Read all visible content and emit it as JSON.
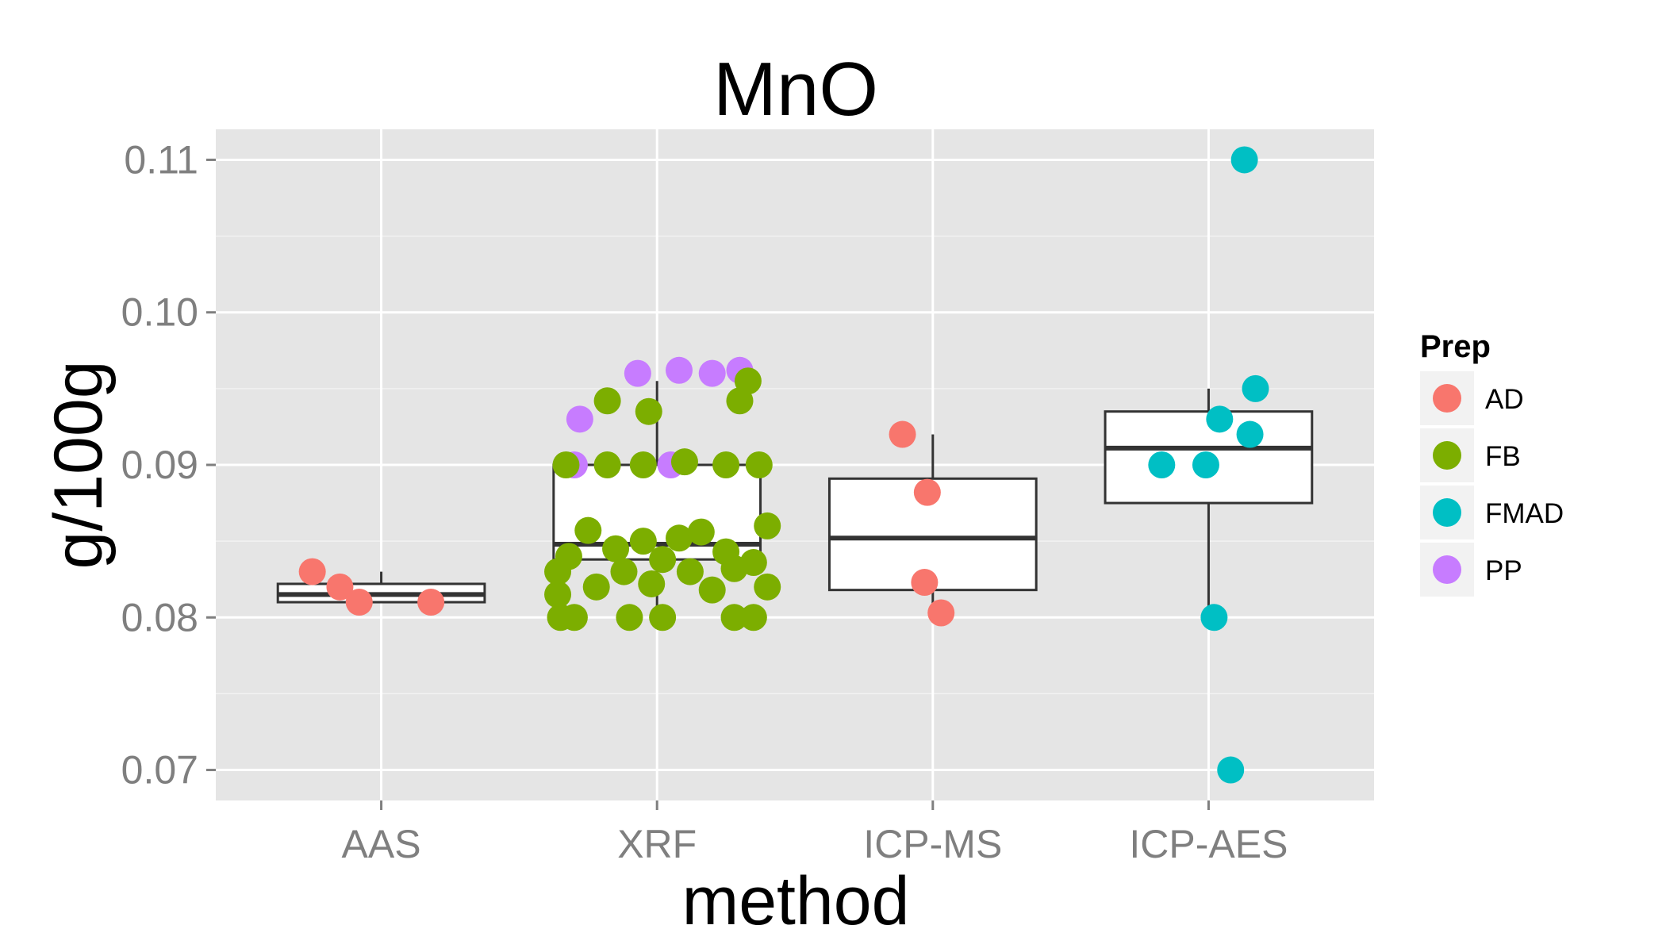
{
  "chart_data": {
    "type": "boxplot",
    "title": "MnO",
    "xlabel": "method",
    "ylabel": "g/100g",
    "categories": [
      "AAS",
      "XRF",
      "ICP-MS",
      "ICP-AES"
    ],
    "ylim": [
      0.068,
      0.112
    ],
    "yticks": [
      "0.07",
      "0.08",
      "0.09",
      "0.10",
      "0.11"
    ],
    "grid": true,
    "legend": {
      "title": "Prep",
      "placement": "right",
      "entries": [
        {
          "name": "AD",
          "color": "#F8766D"
        },
        {
          "name": "FB",
          "color": "#7CAE00"
        },
        {
          "name": "FMAD",
          "color": "#00BFC4"
        },
        {
          "name": "PP",
          "color": "#C77CFF"
        }
      ]
    },
    "boxes": [
      {
        "category": "AAS",
        "lower_whisker": 0.081,
        "q1": 0.081,
        "median": 0.0815,
        "q3": 0.0822,
        "upper_whisker": 0.083
      },
      {
        "category": "XRF",
        "lower_whisker": 0.08,
        "q1": 0.0838,
        "median": 0.0848,
        "q3": 0.09,
        "upper_whisker": 0.0955
      },
      {
        "category": "ICP-MS",
        "lower_whisker": 0.0803,
        "q1": 0.0818,
        "median": 0.0852,
        "q3": 0.0891,
        "upper_whisker": 0.092
      },
      {
        "category": "ICP-AES",
        "lower_whisker": 0.08,
        "q1": 0.0875,
        "median": 0.0911,
        "q3": 0.0935,
        "upper_whisker": 0.095
      }
    ],
    "points": [
      {
        "category": "AAS",
        "prep": "AD",
        "y": 0.083,
        "jitter": -0.25
      },
      {
        "category": "AAS",
        "prep": "AD",
        "y": 0.082,
        "jitter": -0.15
      },
      {
        "category": "AAS",
        "prep": "AD",
        "y": 0.081,
        "jitter": -0.08
      },
      {
        "category": "AAS",
        "prep": "AD",
        "y": 0.081,
        "jitter": 0.18
      },
      {
        "category": "XRF",
        "prep": "PP",
        "y": 0.093,
        "jitter": -0.28
      },
      {
        "category": "XRF",
        "prep": "PP",
        "y": 0.096,
        "jitter": -0.07
      },
      {
        "category": "XRF",
        "prep": "PP",
        "y": 0.0962,
        "jitter": 0.08
      },
      {
        "category": "XRF",
        "prep": "PP",
        "y": 0.096,
        "jitter": 0.2
      },
      {
        "category": "XRF",
        "prep": "PP",
        "y": 0.0962,
        "jitter": 0.3
      },
      {
        "category": "XRF",
        "prep": "PP",
        "y": 0.09,
        "jitter": -0.3
      },
      {
        "category": "XRF",
        "prep": "PP",
        "y": 0.09,
        "jitter": 0.05
      },
      {
        "category": "XRF",
        "prep": "FB",
        "y": 0.0955,
        "jitter": 0.33
      },
      {
        "category": "XRF",
        "prep": "FB",
        "y": 0.0942,
        "jitter": -0.18
      },
      {
        "category": "XRF",
        "prep": "FB",
        "y": 0.0935,
        "jitter": -0.03
      },
      {
        "category": "XRF",
        "prep": "FB",
        "y": 0.0942,
        "jitter": 0.3
      },
      {
        "category": "XRF",
        "prep": "FB",
        "y": 0.09,
        "jitter": -0.33
      },
      {
        "category": "XRF",
        "prep": "FB",
        "y": 0.09,
        "jitter": -0.18
      },
      {
        "category": "XRF",
        "prep": "FB",
        "y": 0.09,
        "jitter": -0.05
      },
      {
        "category": "XRF",
        "prep": "FB",
        "y": 0.0902,
        "jitter": 0.1
      },
      {
        "category": "XRF",
        "prep": "FB",
        "y": 0.09,
        "jitter": 0.25
      },
      {
        "category": "XRF",
        "prep": "FB",
        "y": 0.09,
        "jitter": 0.37
      },
      {
        "category": "XRF",
        "prep": "FB",
        "y": 0.0857,
        "jitter": -0.25
      },
      {
        "category": "XRF",
        "prep": "FB",
        "y": 0.085,
        "jitter": -0.05
      },
      {
        "category": "XRF",
        "prep": "FB",
        "y": 0.0852,
        "jitter": 0.08
      },
      {
        "category": "XRF",
        "prep": "FB",
        "y": 0.0856,
        "jitter": 0.16
      },
      {
        "category": "XRF",
        "prep": "FB",
        "y": 0.086,
        "jitter": 0.4
      },
      {
        "category": "XRF",
        "prep": "FB",
        "y": 0.0845,
        "jitter": -0.15
      },
      {
        "category": "XRF",
        "prep": "FB",
        "y": 0.0843,
        "jitter": 0.25
      },
      {
        "category": "XRF",
        "prep": "FB",
        "y": 0.084,
        "jitter": -0.32
      },
      {
        "category": "XRF",
        "prep": "FB",
        "y": 0.0838,
        "jitter": 0.02
      },
      {
        "category": "XRF",
        "prep": "FB",
        "y": 0.0836,
        "jitter": 0.35
      },
      {
        "category": "XRF",
        "prep": "FB",
        "y": 0.083,
        "jitter": -0.36
      },
      {
        "category": "XRF",
        "prep": "FB",
        "y": 0.083,
        "jitter": -0.12
      },
      {
        "category": "XRF",
        "prep": "FB",
        "y": 0.083,
        "jitter": 0.12
      },
      {
        "category": "XRF",
        "prep": "FB",
        "y": 0.0832,
        "jitter": 0.28
      },
      {
        "category": "XRF",
        "prep": "FB",
        "y": 0.082,
        "jitter": -0.22
      },
      {
        "category": "XRF",
        "prep": "FB",
        "y": 0.0822,
        "jitter": -0.02
      },
      {
        "category": "XRF",
        "prep": "FB",
        "y": 0.0818,
        "jitter": 0.2
      },
      {
        "category": "XRF",
        "prep": "FB",
        "y": 0.082,
        "jitter": 0.4
      },
      {
        "category": "XRF",
        "prep": "FB",
        "y": 0.0815,
        "jitter": -0.36
      },
      {
        "category": "XRF",
        "prep": "FB",
        "y": 0.08,
        "jitter": -0.35
      },
      {
        "category": "XRF",
        "prep": "FB",
        "y": 0.08,
        "jitter": -0.3
      },
      {
        "category": "XRF",
        "prep": "FB",
        "y": 0.08,
        "jitter": -0.1
      },
      {
        "category": "XRF",
        "prep": "FB",
        "y": 0.08,
        "jitter": 0.02
      },
      {
        "category": "XRF",
        "prep": "FB",
        "y": 0.08,
        "jitter": 0.28
      },
      {
        "category": "XRF",
        "prep": "FB",
        "y": 0.08,
        "jitter": 0.35
      },
      {
        "category": "ICP-MS",
        "prep": "AD",
        "y": 0.092,
        "jitter": -0.11
      },
      {
        "category": "ICP-MS",
        "prep": "AD",
        "y": 0.0882,
        "jitter": -0.02
      },
      {
        "category": "ICP-MS",
        "prep": "AD",
        "y": 0.0823,
        "jitter": -0.03
      },
      {
        "category": "ICP-MS",
        "prep": "AD",
        "y": 0.0803,
        "jitter": 0.03
      },
      {
        "category": "ICP-AES",
        "prep": "FMAD",
        "y": 0.11,
        "jitter": 0.13
      },
      {
        "category": "ICP-AES",
        "prep": "FMAD",
        "y": 0.095,
        "jitter": 0.17
      },
      {
        "category": "ICP-AES",
        "prep": "FMAD",
        "y": 0.093,
        "jitter": 0.04
      },
      {
        "category": "ICP-AES",
        "prep": "FMAD",
        "y": 0.092,
        "jitter": 0.15
      },
      {
        "category": "ICP-AES",
        "prep": "FMAD",
        "y": 0.09,
        "jitter": -0.17
      },
      {
        "category": "ICP-AES",
        "prep": "FMAD",
        "y": 0.09,
        "jitter": -0.01
      },
      {
        "category": "ICP-AES",
        "prep": "FMAD",
        "y": 0.08,
        "jitter": 0.02
      },
      {
        "category": "ICP-AES",
        "prep": "FMAD",
        "y": 0.07,
        "jitter": 0.08
      }
    ]
  }
}
